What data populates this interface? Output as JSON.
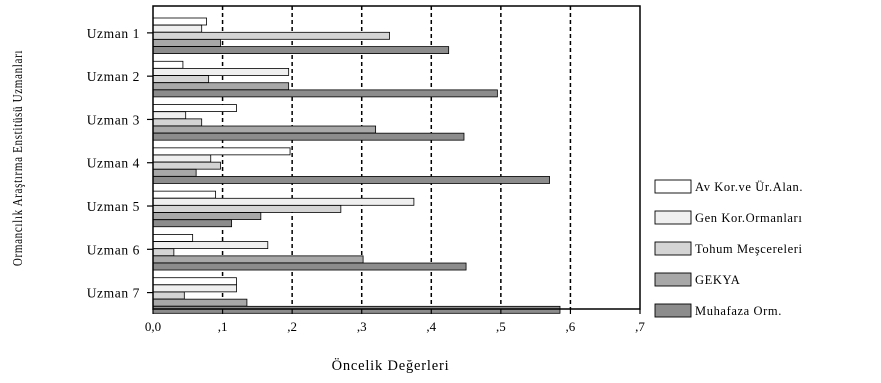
{
  "chart_data": {
    "type": "bar",
    "orientation": "horizontal",
    "xlabel": "Öncelik Değerleri",
    "ylabel": "Ormancılık Araştırma Enstitüsü Uzmanları",
    "xlim": [
      0,
      0.7
    ],
    "x_ticks": [
      0,
      0.1,
      0.2,
      0.3,
      0.4,
      0.5,
      0.6,
      0.7
    ],
    "x_tick_labels": [
      "0,0",
      ",1",
      ",2",
      ",3",
      ",4",
      ",5",
      ",6",
      ",7"
    ],
    "grid": "vertical dashed",
    "legend_position": "right",
    "categories": [
      "Uzman 1",
      "Uzman 2",
      "Uzman 3",
      "Uzman 4",
      "Uzman 5",
      "Uzman 6",
      "Uzman 7"
    ],
    "series": [
      {
        "name": "Av Kor.ve Ür.Alan.",
        "color": "#ffffff",
        "values": [
          0.077,
          0.043,
          0.12,
          0.197,
          0.09,
          0.057,
          0.12
        ]
      },
      {
        "name": "Gen Kor.Ormanları",
        "color": "#efefef",
        "values": [
          0.07,
          0.195,
          0.047,
          0.083,
          0.375,
          0.165,
          0.12
        ]
      },
      {
        "name": "Tohum Meşcereleri",
        "color": "#d4d4d4",
        "values": [
          0.34,
          0.08,
          0.07,
          0.097,
          0.27,
          0.03,
          0.045
        ]
      },
      {
        "name": "GEKYA",
        "color": "#a8a8a8",
        "values": [
          0.097,
          0.195,
          0.32,
          0.062,
          0.155,
          0.302,
          0.135
        ]
      },
      {
        "name": "Muhafaza Orm.",
        "color": "#8c8c8c",
        "values": [
          0.425,
          0.495,
          0.447,
          0.57,
          0.113,
          0.45,
          0.585
        ]
      }
    ]
  }
}
